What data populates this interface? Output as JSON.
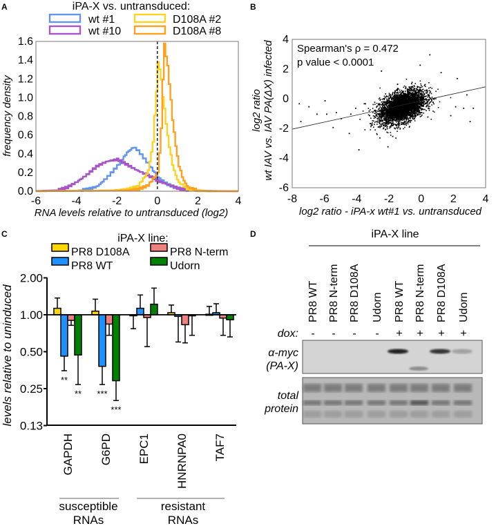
{
  "chart_data": [
    {
      "panel": "A",
      "type": "line",
      "subtype": "step-histogram",
      "legend_title": "iPA-X vs. untransduced:",
      "xlabel": "RNA levels relative to untransduced (log2)",
      "ylabel": "frequency density",
      "xlim": [
        -6,
        4
      ],
      "ylim": [
        0,
        1.6
      ],
      "xticks": [
        "-6",
        "-4",
        "-2",
        "0",
        "2",
        "4"
      ],
      "yticks": [
        "0.0",
        "0.2",
        "0.4",
        "0.6",
        "0.8",
        "1.0",
        "1.2",
        "1.4",
        "1.6"
      ],
      "reference_line_x": 0,
      "series": [
        {
          "name": "wt #1",
          "color": "#6495ED",
          "points": [
            [
              -6,
              0
            ],
            [
              -4,
              0.005
            ],
            [
              -3.5,
              0.02
            ],
            [
              -3,
              0.05
            ],
            [
              -2.5,
              0.15
            ],
            [
              -2,
              0.27
            ],
            [
              -1.5,
              0.42
            ],
            [
              -1.2,
              0.47
            ],
            [
              -1,
              0.44
            ],
            [
              -0.5,
              0.3
            ],
            [
              0,
              0.15
            ],
            [
              0.5,
              0.07
            ],
            [
              1,
              0.03
            ],
            [
              1.5,
              0.01
            ],
            [
              2,
              0
            ],
            [
              4,
              0
            ]
          ]
        },
        {
          "name": "wt #10",
          "color": "#A855C8",
          "points": [
            [
              -6,
              0.003
            ],
            [
              -5,
              0.01
            ],
            [
              -4.5,
              0.04
            ],
            [
              -4,
              0.1
            ],
            [
              -3.5,
              0.18
            ],
            [
              -3,
              0.27
            ],
            [
              -2.5,
              0.32
            ],
            [
              -2,
              0.34
            ],
            [
              -1.5,
              0.28
            ],
            [
              -1,
              0.22
            ],
            [
              -0.5,
              0.17
            ],
            [
              0,
              0.11
            ],
            [
              0.5,
              0.07
            ],
            [
              1,
              0.03
            ],
            [
              1.5,
              0.01
            ],
            [
              2,
              0.005
            ],
            [
              3,
              0.002
            ],
            [
              4,
              0
            ]
          ]
        },
        {
          "name": "D108A #2",
          "color": "#FFD21F",
          "points": [
            [
              -6,
              0
            ],
            [
              -2.5,
              0.005
            ],
            [
              -1.5,
              0.02
            ],
            [
              -1,
              0.05
            ],
            [
              -0.5,
              0.2
            ],
            [
              -0.25,
              0.5
            ],
            [
              -0.1,
              1.0
            ],
            [
              0,
              1.37
            ],
            [
              0.1,
              1.3
            ],
            [
              0.25,
              1.0
            ],
            [
              0.5,
              0.55
            ],
            [
              0.75,
              0.25
            ],
            [
              1,
              0.1
            ],
            [
              1.5,
              0.02
            ],
            [
              2,
              0
            ],
            [
              4,
              0
            ]
          ]
        },
        {
          "name": "D108A #8",
          "color": "#FFA020",
          "points": [
            [
              -6,
              0
            ],
            [
              -1.5,
              0.01
            ],
            [
              -1,
              0.02
            ],
            [
              -0.5,
              0.06
            ],
            [
              0,
              0.2
            ],
            [
              0.15,
              0.6
            ],
            [
              0.3,
              1.6
            ],
            [
              0.5,
              1.3
            ],
            [
              0.75,
              0.7
            ],
            [
              1,
              0.3
            ],
            [
              1.25,
              0.12
            ],
            [
              1.5,
              0.04
            ],
            [
              2,
              0.01
            ],
            [
              2.5,
              0
            ],
            [
              4,
              0
            ]
          ]
        }
      ]
    },
    {
      "panel": "B",
      "type": "scatter",
      "xlabel": "log2 ratio - iPA-x wt#1 vs. untransduced",
      "ylabel_line1": "log2 ratio",
      "ylabel_line2": "wt IAV vs. IAV PA(ΔX) infected",
      "xlim": [
        -8,
        4
      ],
      "ylim": [
        -6,
        4
      ],
      "xticks": [
        "-8",
        "-6",
        "-4",
        "-2",
        "0",
        "2",
        "4"
      ],
      "yticks": [
        "-6",
        "-4",
        "-2",
        "0",
        "2",
        "4"
      ],
      "annotation_line1": "Spearman's ρ = 0.472",
      "annotation_line2": "p value < 0.0001",
      "regression_line": [
        [
          -8,
          -2.05
        ],
        [
          4,
          0.8
        ]
      ],
      "cluster": {
        "center": [
          -1.2,
          -0.5
        ],
        "sd": [
          0.7,
          0.55
        ],
        "correlation": 0.45,
        "n": 4000
      },
      "outliers": [
        [
          -7.6,
          -0.3
        ],
        [
          -7.5,
          -1.5
        ],
        [
          -7,
          -0.5
        ],
        [
          -6.5,
          -1.0
        ],
        [
          -6,
          -0.1
        ],
        [
          -5.9,
          -1.0
        ],
        [
          -5.5,
          -1.9
        ],
        [
          -5.3,
          -0.9
        ],
        [
          -5,
          -1.3
        ],
        [
          -4.5,
          -2.3
        ],
        [
          -4.4,
          -1.0
        ],
        [
          -4.1,
          -0.6
        ],
        [
          -3.9,
          -3.4
        ],
        [
          -3.5,
          -0.3
        ],
        [
          -2.6,
          -2.6
        ],
        [
          -2.1,
          -3.2
        ],
        [
          -2.5,
          1.9
        ],
        [
          -1.8,
          -2.5
        ],
        [
          0.5,
          3.0
        ],
        [
          -0.1,
          2.3
        ],
        [
          1.2,
          1.8
        ],
        [
          2.2,
          1.4
        ],
        [
          2.1,
          -0.5
        ],
        [
          2.6,
          -0.6
        ],
        [
          3.0,
          -1.5
        ],
        [
          3.2,
          -0.6
        ],
        [
          2.8,
          0.3
        ],
        [
          1.8,
          -1.1
        ]
      ]
    },
    {
      "panel": "C",
      "type": "bar",
      "legend_title": "iPA-X line:",
      "ylabel": "levels relative to uninduced",
      "yscale": "log2",
      "ylim": [
        0.125,
        2.0
      ],
      "yticks": [
        "0.13",
        "0.25",
        "0.50",
        "1.00",
        "2.00"
      ],
      "categories": [
        "GAPDH",
        "G6PD",
        "EPC1",
        "HNRNPA0",
        "TAF7"
      ],
      "groups": [
        {
          "label_line1": "susceptible",
          "label_line2": "RNAs",
          "categories": [
            "GAPDH",
            "G6PD"
          ]
        },
        {
          "label_line1": "resistant",
          "label_line2": "RNAs",
          "categories": [
            "EPC1",
            "HNRNPA0",
            "TAF7"
          ]
        }
      ],
      "series": [
        {
          "name": "PR8 D108A",
          "color": "#FFD700",
          "values": [
            1.13,
            1.07,
            1.0,
            1.04,
            1.01
          ],
          "error_to": [
            1.37,
            1.34,
            0.77,
            1.2,
            1.17
          ],
          "significance": [
            "",
            "",
            "",
            "",
            ""
          ]
        },
        {
          "name": "PR8 WT",
          "color": "#1E90FF",
          "values": [
            0.46,
            0.38,
            1.13,
            0.97,
            1.04
          ],
          "error_to": [
            0.35,
            0.27,
            1.45,
            0.6,
            1.23
          ],
          "significance": [
            "**",
            "***",
            "",
            "",
            ""
          ]
        },
        {
          "name": "PR8 N-term",
          "color": "#F08080",
          "values": [
            0.9,
            0.84,
            0.95,
            0.83,
            0.94
          ],
          "error_to": [
            0.82,
            0.68,
            0.55,
            0.59,
            0.68
          ],
          "significance": [
            "",
            "",
            "",
            "",
            ""
          ]
        },
        {
          "name": "Udorn",
          "color": "#008000",
          "values": [
            0.47,
            0.29,
            1.22,
            0.98,
            0.91
          ],
          "error_to": [
            0.27,
            0.2,
            1.65,
            0.68,
            0.66
          ],
          "significance": [
            "**",
            "***",
            "",
            "",
            ""
          ]
        }
      ]
    }
  ],
  "panel_labels": [
    "A",
    "B",
    "C",
    "D"
  ],
  "blot": {
    "title": "iPA-X line",
    "dox_label": "dox:",
    "lanes": [
      {
        "name": "PR8 WT",
        "dox": "-",
        "myc_band": 0
      },
      {
        "name": "PR8 N-term",
        "dox": "-",
        "myc_band": 0
      },
      {
        "name": "PR8 D108A",
        "dox": "-",
        "myc_band": 0
      },
      {
        "name": "Udorn",
        "dox": "-",
        "myc_band": 0
      },
      {
        "name": "PR8 WT",
        "dox": "+",
        "myc_band": 0.9
      },
      {
        "name": "PR8 N-term",
        "dox": "+",
        "myc_band": 0.4
      },
      {
        "name": "PR8 D108A",
        "dox": "+",
        "myc_band": 0.8
      },
      {
        "name": "Udorn",
        "dox": "+",
        "myc_band": 0.25
      }
    ],
    "row1_label_line1": "α-myc",
    "row1_label_line2": "(PA-X)",
    "row2_label_line1": "total",
    "row2_label_line2": "protein"
  }
}
